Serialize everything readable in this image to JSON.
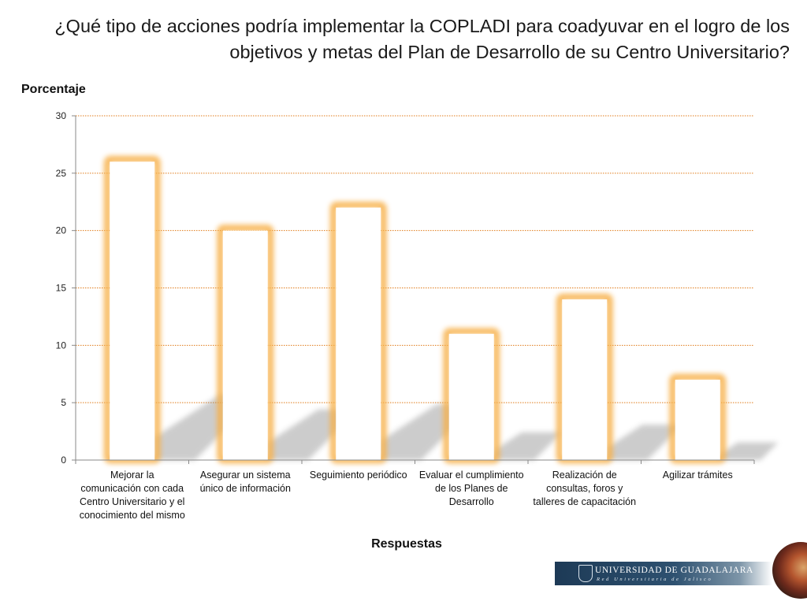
{
  "title": {
    "line1": "¿Qué tipo de acciones podría implementar la COPLADI para coadyuvar en el logro de los",
    "line2": "objetivos y metas del Plan de Desarrollo de su Centro Universitario?"
  },
  "chart_data": {
    "type": "bar",
    "title": "¿Qué tipo de acciones podría implementar la COPLADI para coadyuvar en el logro de los objetivos y metas del Plan de Desarrollo de su Centro Universitario?",
    "xlabel": "Respuestas",
    "ylabel": "Porcentaje",
    "ylim": [
      0,
      30
    ],
    "yticks": [
      0,
      5,
      10,
      15,
      20,
      25,
      30
    ],
    "grid": true,
    "legend": "none",
    "categories": [
      "Mejorar la comunicación con cada Centro Universitario y el conocimiento del mismo",
      "Asegurar un sistema único de información",
      "Seguimiento periódico",
      "Evaluar el cumplimiento de los Planes de Desarrollo",
      "Realización de consultas, foros y talleres de capacitación",
      "Agilizar trámites"
    ],
    "category_lines": [
      [
        "Mejorar la",
        "comunicación con cada",
        "Centro Universitario y el",
        "conocimiento del mismo"
      ],
      [
        "Asegurar un sistema",
        "único de información"
      ],
      [
        "Seguimiento periódico"
      ],
      [
        "Evaluar el cumplimiento",
        "de los Planes de",
        "Desarrollo"
      ],
      [
        "Realización de",
        "consultas, foros y",
        "talleres de capacitación"
      ],
      [
        "Agilizar trámites"
      ]
    ],
    "values": [
      26,
      20,
      22,
      11,
      14,
      7
    ],
    "colors": {
      "bar_fill": "#ffffff",
      "bar_glow": "#f7b04a",
      "gridline": "#e07b1a",
      "axis": "#8a8a8a",
      "shadow": "#7a7a7a"
    }
  },
  "footer": {
    "university_name": "UNIVERSIDAD DE GUADALAJARA",
    "network": "Red Universitaria de Jalisco"
  }
}
